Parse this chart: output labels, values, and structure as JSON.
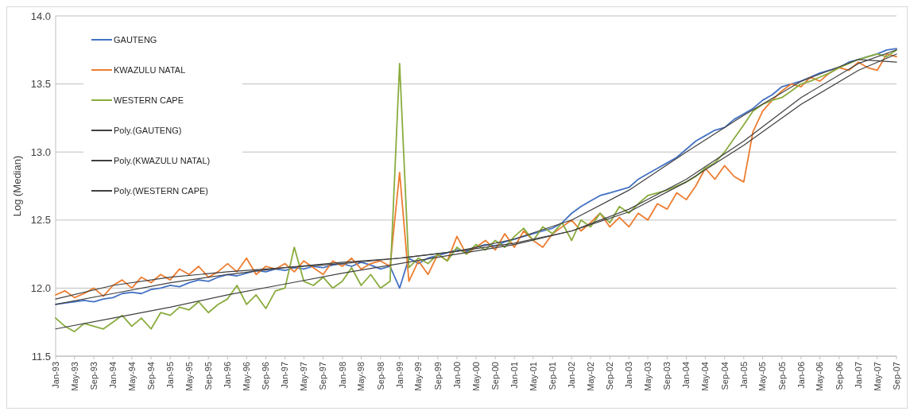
{
  "chart_data": {
    "type": "line",
    "ylabel": "Log (Median)",
    "ylim": [
      11.5,
      14
    ],
    "yticks": [
      {
        "value": 11.5,
        "label": "11.5"
      },
      {
        "value": 12,
        "label": "12.0"
      },
      {
        "value": 12.5,
        "label": "12.5"
      },
      {
        "value": 13,
        "label": "13.0"
      },
      {
        "value": 13.5,
        "label": "13.5"
      },
      {
        "value": 14,
        "label": "14.0"
      }
    ],
    "xlim": [
      "1993-01",
      "2007-09"
    ],
    "xticks": [
      {
        "value": "1993-01",
        "label": "Jan-93"
      },
      {
        "value": "1993-05",
        "label": "May-93"
      },
      {
        "value": "1993-09",
        "label": "Sep-93"
      },
      {
        "value": "1994-01",
        "label": "Jan-94"
      },
      {
        "value": "1994-05",
        "label": "May-94"
      },
      {
        "value": "1994-09",
        "label": "Sep-94"
      },
      {
        "value": "1995-01",
        "label": "Jan-95"
      },
      {
        "value": "1995-05",
        "label": "May-95"
      },
      {
        "value": "1995-09",
        "label": "Sep-95"
      },
      {
        "value": "1996-01",
        "label": "Jan-96"
      },
      {
        "value": "1996-05",
        "label": "May-96"
      },
      {
        "value": "1996-09",
        "label": "Sep-96"
      },
      {
        "value": "1997-01",
        "label": "Jan-97"
      },
      {
        "value": "1997-05",
        "label": "May-97"
      },
      {
        "value": "1997-09",
        "label": "Sep-97"
      },
      {
        "value": "1998-01",
        "label": "Jan-98"
      },
      {
        "value": "1998-05",
        "label": "May-98"
      },
      {
        "value": "1998-09",
        "label": "Sep-98"
      },
      {
        "value": "1999-01",
        "label": "Jan-99"
      },
      {
        "value": "1999-05",
        "label": "May-99"
      },
      {
        "value": "1999-09",
        "label": "Sep-99"
      },
      {
        "value": "2000-01",
        "label": "Jan-00"
      },
      {
        "value": "2000-05",
        "label": "May-00"
      },
      {
        "value": "2000-09",
        "label": "Sep-00"
      },
      {
        "value": "2001-01",
        "label": "Jan-01"
      },
      {
        "value": "2001-05",
        "label": "May-01"
      },
      {
        "value": "2001-09",
        "label": "Sep-01"
      },
      {
        "value": "2002-01",
        "label": "Jan-02"
      },
      {
        "value": "2002-05",
        "label": "May-02"
      },
      {
        "value": "2002-09",
        "label": "Sep-02"
      },
      {
        "value": "2003-01",
        "label": "Jan-03"
      },
      {
        "value": "2003-05",
        "label": "May-03"
      },
      {
        "value": "2003-09",
        "label": "Sep-03"
      },
      {
        "value": "2004-01",
        "label": "Jan-04"
      },
      {
        "value": "2004-05",
        "label": "May-04"
      },
      {
        "value": "2004-09",
        "label": "Sep-04"
      },
      {
        "value": "2005-01",
        "label": "Jan-05"
      },
      {
        "value": "2005-05",
        "label": "May-05"
      },
      {
        "value": "2005-09",
        "label": "Sep-05"
      },
      {
        "value": "2006-01",
        "label": "Jan-06"
      },
      {
        "value": "2006-05",
        "label": "May-06"
      },
      {
        "value": "2006-09",
        "label": "Sep-06"
      },
      {
        "value": "2007-01",
        "label": "Jan-07"
      },
      {
        "value": "2007-05",
        "label": "May-07"
      },
      {
        "value": "2007-09",
        "label": "Sep-07"
      }
    ],
    "grid": "y",
    "legend": "top left",
    "x": [
      "1993-01",
      "1993-03",
      "1993-05",
      "1993-07",
      "1993-09",
      "1993-11",
      "1994-01",
      "1994-03",
      "1994-05",
      "1994-07",
      "1994-09",
      "1994-11",
      "1995-01",
      "1995-03",
      "1995-05",
      "1995-07",
      "1995-09",
      "1995-11",
      "1996-01",
      "1996-03",
      "1996-05",
      "1996-07",
      "1996-09",
      "1996-11",
      "1997-01",
      "1997-03",
      "1997-05",
      "1997-07",
      "1997-09",
      "1997-11",
      "1998-01",
      "1998-03",
      "1998-05",
      "1998-07",
      "1998-09",
      "1998-11",
      "1999-01",
      "1999-03",
      "1999-05",
      "1999-07",
      "1999-09",
      "1999-11",
      "2000-01",
      "2000-03",
      "2000-05",
      "2000-07",
      "2000-09",
      "2000-11",
      "2001-01",
      "2001-03",
      "2001-05",
      "2001-07",
      "2001-09",
      "2001-11",
      "2002-01",
      "2002-03",
      "2002-05",
      "2002-07",
      "2002-09",
      "2002-11",
      "2003-01",
      "2003-03",
      "2003-05",
      "2003-07",
      "2003-09",
      "2003-11",
      "2004-01",
      "2004-03",
      "2004-05",
      "2004-07",
      "2004-09",
      "2004-11",
      "2005-01",
      "2005-03",
      "2005-05",
      "2005-07",
      "2005-09",
      "2005-11",
      "2006-01",
      "2006-03",
      "2006-05",
      "2006-07",
      "2006-09",
      "2006-11",
      "2007-01",
      "2007-03",
      "2007-05",
      "2007-07",
      "2007-09"
    ],
    "series": [
      {
        "name": "GAUTENG",
        "color": "#4472c4",
        "values": [
          11.88,
          11.89,
          11.9,
          11.91,
          11.9,
          11.92,
          11.93,
          11.96,
          11.97,
          11.96,
          11.99,
          12,
          12.02,
          12.01,
          12.04,
          12.06,
          12.05,
          12.08,
          12.1,
          12.09,
          12.11,
          12.13,
          12.12,
          12.14,
          12.13,
          12.15,
          12.14,
          12.16,
          12.15,
          12.17,
          12.18,
          12.16,
          12.19,
          12.17,
          12.14,
          12.16,
          12,
          12.22,
          12.18,
          12.22,
          12.24,
          12.26,
          12.28,
          12.27,
          12.3,
          12.32,
          12.31,
          12.34,
          12.36,
          12.38,
          12.4,
          12.42,
          12.44,
          12.48,
          12.55,
          12.6,
          12.64,
          12.68,
          12.7,
          12.72,
          12.74,
          12.8,
          12.84,
          12.88,
          12.92,
          12.96,
          13.02,
          13.08,
          13.12,
          13.16,
          13.18,
          13.24,
          13.28,
          13.32,
          13.38,
          13.42,
          13.48,
          13.5,
          13.52,
          13.55,
          13.58,
          13.6,
          13.62,
          13.66,
          13.68,
          13.7,
          13.72,
          13.75,
          13.76
        ]
      },
      {
        "name": "KWAZULU NATAL",
        "color": "#ed7d31",
        "values": [
          11.95,
          11.98,
          11.93,
          11.96,
          12,
          11.94,
          12.02,
          12.06,
          12,
          12.08,
          12.04,
          12.1,
          12.06,
          12.14,
          12.1,
          12.16,
          12.08,
          12.12,
          12.18,
          12.12,
          12.22,
          12.1,
          12.16,
          12.14,
          12.18,
          12.12,
          12.2,
          12.15,
          12.1,
          12.2,
          12.16,
          12.22,
          12.14,
          12.18,
          12.2,
          12.16,
          12.85,
          12.05,
          12.2,
          12.1,
          12.25,
          12.2,
          12.38,
          12.25,
          12.3,
          12.35,
          12.28,
          12.4,
          12.3,
          12.42,
          12.35,
          12.3,
          12.4,
          12.45,
          12.5,
          12.42,
          12.48,
          12.55,
          12.45,
          12.52,
          12.45,
          12.55,
          12.5,
          12.62,
          12.58,
          12.7,
          12.65,
          12.75,
          12.88,
          12.8,
          12.9,
          12.82,
          12.78,
          13.15,
          13.3,
          13.38,
          13.45,
          13.5,
          13.48,
          13.55,
          13.52,
          13.58,
          13.62,
          13.6,
          13.66,
          13.62,
          13.6,
          13.72,
          13.7
        ]
      },
      {
        "name": "WESTERN CAPE",
        "color": "#8aac3e",
        "values": [
          11.78,
          11.72,
          11.68,
          11.74,
          11.72,
          11.7,
          11.75,
          11.8,
          11.72,
          11.78,
          11.7,
          11.82,
          11.8,
          11.86,
          11.84,
          11.9,
          11.82,
          11.88,
          11.92,
          12.02,
          11.88,
          11.95,
          11.85,
          11.98,
          12,
          12.3,
          12.05,
          12.02,
          12.08,
          12,
          12.05,
          12.15,
          12.02,
          12.1,
          12,
          12.05,
          13.65,
          12.15,
          12.22,
          12.18,
          12.25,
          12.2,
          12.3,
          12.25,
          12.32,
          12.28,
          12.35,
          12.3,
          12.38,
          12.44,
          12.35,
          12.45,
          12.4,
          12.48,
          12.35,
          12.5,
          12.45,
          12.55,
          12.48,
          12.6,
          12.55,
          12.62,
          12.68,
          12.7,
          12.72,
          12.75,
          12.78,
          12.82,
          12.88,
          12.92,
          13,
          13.1,
          13.2,
          13.3,
          13.35,
          13.38,
          13.4,
          13.45,
          13.5,
          13.52,
          13.55,
          13.58,
          13.62,
          13.65,
          13.68,
          13.7,
          13.72,
          13.7,
          13.75
        ]
      },
      {
        "name": "Poly.(GAUTENG)",
        "color": "#404040",
        "x": [
          "1993-01",
          "1994-01",
          "1995-01",
          "1996-01",
          "1997-01",
          "1998-01",
          "1999-01",
          "2000-01",
          "2001-01",
          "2002-01",
          "2003-01",
          "2004-01",
          "2005-01",
          "2006-01",
          "2007-01",
          "2007-09"
        ],
        "values": [
          11.88,
          11.96,
          12.04,
          12.1,
          12.15,
          12.19,
          12.22,
          12.27,
          12.36,
          12.5,
          12.72,
          13,
          13.27,
          13.52,
          13.68,
          13.66
        ]
      },
      {
        "name": "Poly.(KWAZULU NATAL)",
        "color": "#404040",
        "x": [
          "1993-01",
          "1994-01",
          "1995-01",
          "1996-01",
          "1997-01",
          "1998-01",
          "1999-01",
          "2000-01",
          "2001-01",
          "2002-01",
          "2003-01",
          "2004-01",
          "2005-01",
          "2006-01",
          "2007-01",
          "2007-09"
        ],
        "values": [
          11.92,
          12.02,
          12.08,
          12.12,
          12.15,
          12.18,
          12.22,
          12.27,
          12.33,
          12.42,
          12.56,
          12.78,
          13.05,
          13.35,
          13.6,
          13.72
        ]
      },
      {
        "name": "Poly.(WESTERN CAPE)",
        "color": "#404040",
        "x": [
          "1993-01",
          "1994-01",
          "1995-01",
          "1996-01",
          "1997-01",
          "1998-01",
          "1999-01",
          "2000-01",
          "2001-01",
          "2002-01",
          "2003-01",
          "2004-01",
          "2005-01",
          "2006-01",
          "2007-01",
          "2007-09"
        ],
        "values": [
          11.7,
          11.78,
          11.86,
          11.95,
          12.03,
          12.11,
          12.18,
          12.25,
          12.32,
          12.42,
          12.58,
          12.8,
          13.08,
          13.4,
          13.65,
          13.75
        ]
      }
    ]
  }
}
